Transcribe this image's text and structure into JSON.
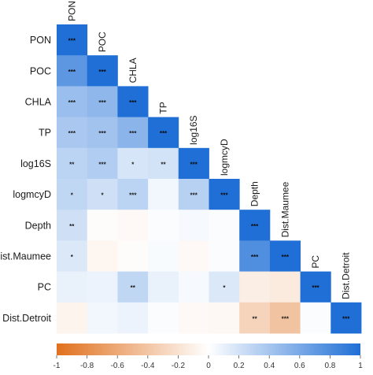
{
  "chart_data": {
    "type": "heatmap",
    "variables": [
      "PON",
      "POC",
      "CHLA",
      "TP",
      "log16S",
      "logmcyD",
      "Depth",
      "Dist.Maumee",
      "PC",
      "Dist.Detroit"
    ],
    "matrix_lower": [
      [
        1
      ],
      [
        0.72,
        1
      ],
      [
        0.45,
        0.5,
        1
      ],
      [
        0.38,
        0.42,
        0.52,
        1
      ],
      [
        0.3,
        0.35,
        0.18,
        0.2,
        1
      ],
      [
        0.28,
        0.22,
        0.3,
        0.06,
        0.32,
        1
      ],
      [
        0.22,
        -0.02,
        -0.04,
        0.02,
        0.04,
        0.02,
        1
      ],
      [
        0.16,
        -0.06,
        -0.02,
        0.03,
        -0.04,
        0.02,
        0.78,
        1
      ],
      [
        0.1,
        0.08,
        0.28,
        0.1,
        0.04,
        0.16,
        -0.12,
        -0.14,
        1
      ],
      [
        -0.08,
        0.06,
        0.08,
        0.02,
        -0.04,
        -0.05,
        -0.3,
        -0.42,
        0.02,
        1
      ]
    ],
    "significance_lower": [
      [
        "***"
      ],
      [
        "***",
        "***"
      ],
      [
        "***",
        "***",
        "***"
      ],
      [
        "***",
        "***",
        "***",
        "***"
      ],
      [
        "**",
        "***",
        "*",
        "**",
        "***"
      ],
      [
        "*",
        "*",
        "***",
        "",
        "***",
        "***"
      ],
      [
        "**",
        "",
        "",
        "",
        "",
        "",
        "***"
      ],
      [
        "*",
        "",
        "",
        "",
        "",
        "",
        "***",
        "***"
      ],
      [
        "",
        "",
        "**",
        "",
        "",
        "*",
        "",
        "",
        "***"
      ],
      [
        "",
        "",
        "",
        "",
        "",
        "",
        "**",
        "***",
        "",
        "***"
      ]
    ],
    "colorbar": {
      "range": [
        -1,
        1
      ],
      "ticks": [
        "-1",
        "-0.8",
        "-0.6",
        "-0.4",
        "-0.2",
        "0",
        "0.2",
        "0.4",
        "0.6",
        "0.8",
        "1"
      ],
      "colors": {
        "negative": "#e0701d",
        "neutral": "#ffffff",
        "positive": "#1f6fd6"
      }
    }
  }
}
